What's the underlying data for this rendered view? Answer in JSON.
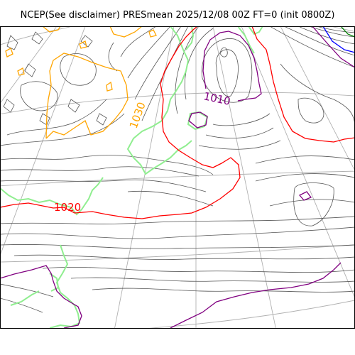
{
  "title": "NCEP(See disclaimer) PRESmean 2025/12/08 00Z FT=0 (init 0800Z)",
  "labels": [
    {
      "key": "l1030",
      "text": "1030",
      "color": "#ffa500"
    },
    {
      "key": "l1010",
      "text": "1010",
      "color": "#800080"
    },
    {
      "key": "l1020",
      "text": "1020",
      "color": "#ff0000"
    }
  ],
  "colors": {
    "isobar": "#555555",
    "iso_1020": "#ff0000",
    "iso_1010": "#800080",
    "iso_1030": "#ffa500",
    "iso_low_blue": "#0000ff",
    "iso_low_green": "#008000",
    "coastline": "#90ee90",
    "graticule": "#b0b0b0"
  }
}
